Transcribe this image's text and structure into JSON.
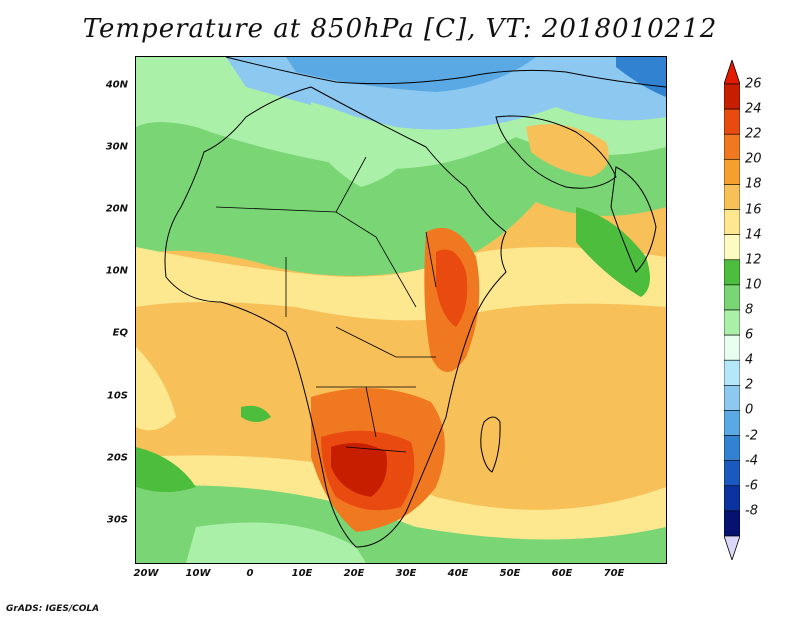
{
  "title": "Temperature at 850hPa [C], VT: 2018010212",
  "credit": "GrADS: IGES/COLA",
  "lat_labels": [
    "40N",
    "30N",
    "20N",
    "10N",
    "EQ",
    "10S",
    "20S",
    "30S"
  ],
  "lon_labels": [
    "20W",
    "10W",
    "0",
    "10E",
    "20E",
    "30E",
    "40E",
    "50E",
    "60E",
    "70E"
  ],
  "colorbar": {
    "labels": [
      "26",
      "24",
      "22",
      "20",
      "18",
      "16",
      "14",
      "12",
      "10",
      "8",
      "6",
      "4",
      "2",
      "0",
      "-2",
      "-4",
      "-6",
      "-8"
    ],
    "colors": [
      "#c81e00",
      "#e84a10",
      "#f07820",
      "#f5a02e",
      "#f8c058",
      "#fde890",
      "#fdfcc0",
      "#4cbd3c",
      "#7ad674",
      "#aaf0a8",
      "#e8fff0",
      "#b4e8f8",
      "#8cc8f0",
      "#5aa8e4",
      "#3282d2",
      "#1a5ac0",
      "#0a32a0",
      "#051270"
    ],
    "top_arrow_color": "#e41a00",
    "bottom_arrow_color": "#dcd8f8"
  }
}
